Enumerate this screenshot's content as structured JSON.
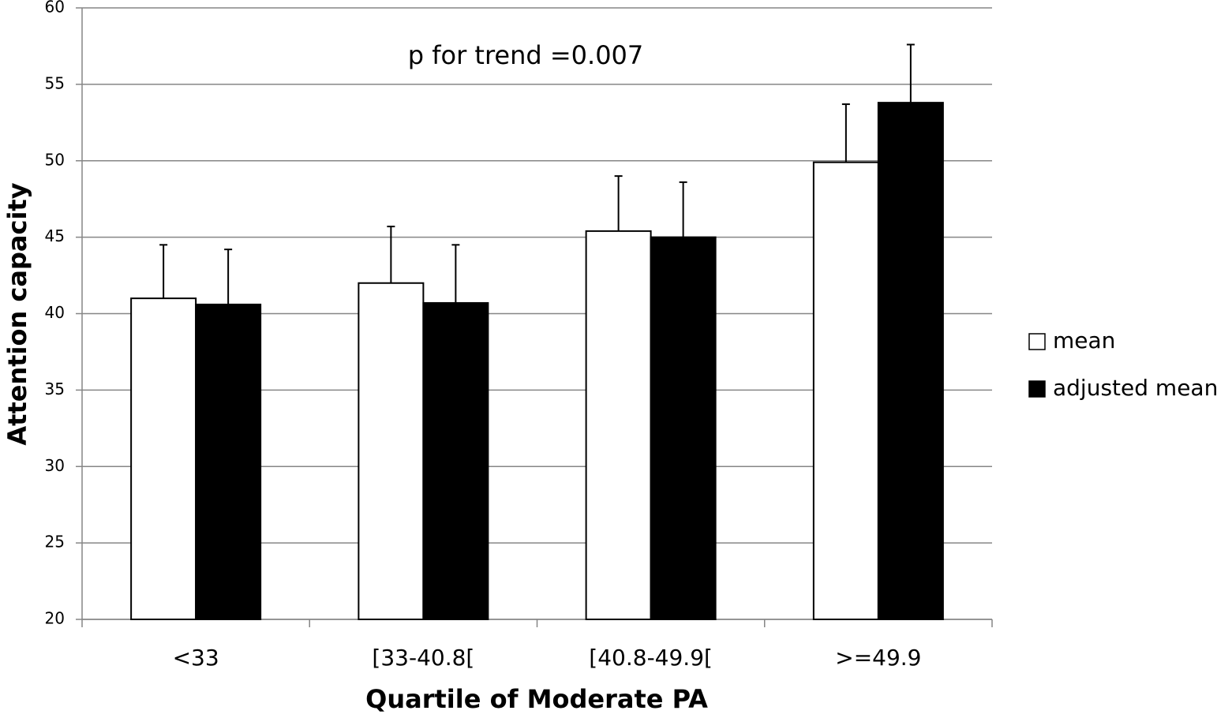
{
  "chart_data": {
    "type": "bar",
    "annotation": "p for trend =0.007",
    "x_label": "Quartile of Moderate PA",
    "y_label": "Attention capacity",
    "categories": [
      "<33",
      "[33-40.8[",
      "[40.8-49.9[",
      ">=49.9"
    ],
    "series": [
      {
        "name": "mean",
        "color": "#ffffff",
        "values": [
          41.0,
          42.0,
          45.4,
          49.9
        ],
        "errors": [
          3.5,
          3.7,
          3.6,
          3.8
        ]
      },
      {
        "name": "adjusted mean",
        "color": "#000000",
        "values": [
          40.6,
          40.7,
          45.0,
          53.8
        ],
        "errors": [
          3.6,
          3.8,
          3.6,
          3.8
        ]
      }
    ],
    "ylim": [
      20,
      60
    ],
    "yticks": [
      20,
      25,
      30,
      35,
      40,
      45,
      50,
      55,
      60
    ],
    "grid": true,
    "legend": "right"
  }
}
